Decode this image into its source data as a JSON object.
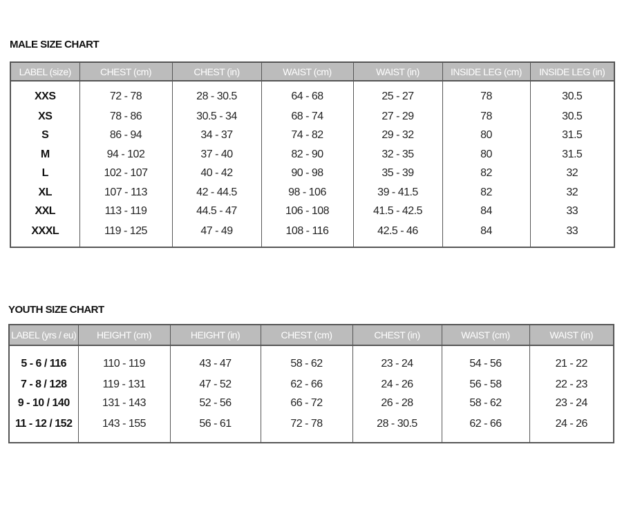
{
  "male": {
    "title": "MALE SIZE CHART",
    "headers": [
      "LABEL (size)",
      "CHEST (cm)",
      "CHEST (in)",
      "WAIST (cm)",
      "WAIST (in)",
      "INSIDE LEG (cm)",
      "INSIDE LEG (in)"
    ],
    "rows": [
      [
        "XXS",
        "72 - 78",
        "28 - 30.5",
        "64 - 68",
        "25 - 27",
        "78",
        "30.5"
      ],
      [
        "XS",
        "78 - 86",
        "30.5 - 34",
        "68 - 74",
        "27 - 29",
        "78",
        "30.5"
      ],
      [
        "S",
        "86 - 94",
        "34 - 37",
        "74 - 82",
        "29 - 32",
        "80",
        "31.5"
      ],
      [
        "M",
        "94 - 102",
        "37 - 40",
        "82 - 90",
        "32 - 35",
        "80",
        "31.5"
      ],
      [
        "L",
        "102 - 107",
        "40 - 42",
        "90 - 98",
        "35 - 39",
        "82",
        "32"
      ],
      [
        "XL",
        "107 - 113",
        "42 - 44.5",
        "98 - 106",
        "39 - 41.5",
        "82",
        "32"
      ],
      [
        "XXL",
        "113 - 119",
        "44.5 - 47",
        "106 - 108",
        "41.5 - 42.5",
        "84",
        "33"
      ],
      [
        "XXXL",
        "119 - 125",
        "47 - 49",
        "108 - 116",
        "42.5 - 46",
        "84",
        "33"
      ]
    ]
  },
  "youth": {
    "title": "YOUTH SIZE CHART",
    "headers": [
      "LABEL (yrs / eu)",
      "HEIGHT (cm)",
      "HEIGHT (in)",
      "CHEST (cm)",
      "CHEST (in)",
      "WAIST (cm)",
      "WAIST (in)"
    ],
    "rows": [
      [
        "5 - 6 / 116",
        "110 - 119",
        "43 - 47",
        "58 - 62",
        "23 - 24",
        "54 - 56",
        "21 - 22"
      ],
      [
        "7 - 8 / 128",
        "119 - 131",
        "47 - 52",
        "62 - 66",
        "24 - 26",
        "56 - 58",
        "22 - 23"
      ],
      [
        "9 - 10 / 140",
        "131 - 143",
        "52 - 56",
        "66 - 72",
        "26 - 28",
        "58 - 62",
        "23 - 24"
      ],
      [
        "11 - 12 / 152",
        "143 - 155",
        "56 - 61",
        "72 - 78",
        "28 - 30.5",
        "62 - 66",
        "24 - 26"
      ]
    ]
  }
}
